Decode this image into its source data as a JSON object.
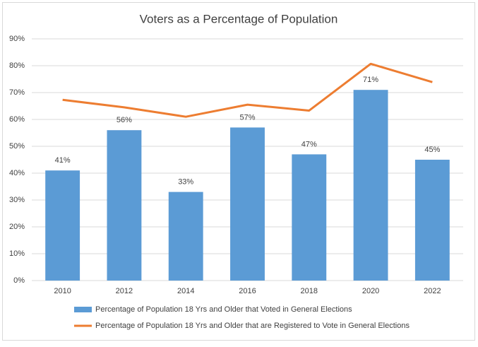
{
  "chart_data": {
    "type": "bar",
    "title": "Voters as a Percentage of Population",
    "categories": [
      "2010",
      "2012",
      "2014",
      "2016",
      "2018",
      "2020",
      "2022"
    ],
    "series": [
      {
        "name": "Percentage of Population 18 Yrs and Older that Voted in General Elections",
        "type": "bar",
        "color": "#5b9bd5",
        "values": [
          41,
          56,
          33,
          57,
          47,
          71,
          45
        ],
        "value_labels": [
          "41%",
          "56%",
          "33%",
          "57%",
          "47%",
          "71%",
          "45%"
        ]
      },
      {
        "name": "Percentage of Population 18 Yrs and Older that are Registered to Vote in General Elections",
        "type": "line",
        "color": "#ed7d31",
        "values": [
          67.3,
          64.5,
          61,
          65.5,
          63.3,
          80.7,
          73.9
        ]
      }
    ],
    "ylim": [
      0,
      90
    ],
    "yticks": [
      {
        "value": 0,
        "label": "0%"
      },
      {
        "value": 10,
        "label": "10%"
      },
      {
        "value": 20,
        "label": "20%"
      },
      {
        "value": 30,
        "label": "30%"
      },
      {
        "value": 40,
        "label": "40%"
      },
      {
        "value": 50,
        "label": "50%"
      },
      {
        "value": 60,
        "label": "60%"
      },
      {
        "value": 70,
        "label": "70%"
      },
      {
        "value": 80,
        "label": "80%"
      },
      {
        "value": 90,
        "label": "90%"
      }
    ],
    "grid": true,
    "legend": "bottom"
  }
}
